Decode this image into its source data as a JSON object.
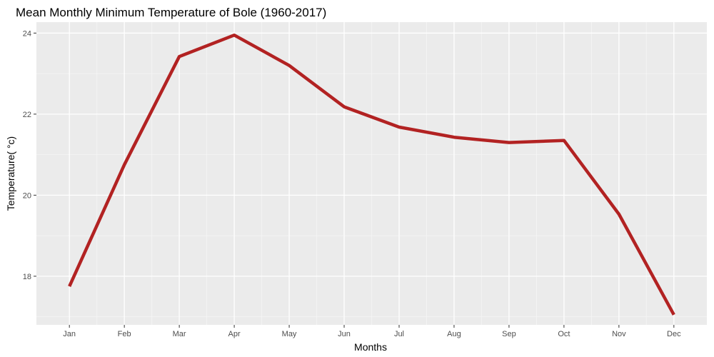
{
  "chart_data": {
    "type": "line",
    "title": "Mean Monthly Minimum Temperature  of Bole (1960-2017)",
    "xlabel": "Months",
    "ylabel": "Temperature( °c)",
    "categories": [
      "Jan",
      "Feb",
      "Mar",
      "Apr",
      "May",
      "Jun",
      "Jul",
      "Aug",
      "Sep",
      "Oct",
      "Nov",
      "Dec"
    ],
    "series": [
      {
        "values": [
          17.75,
          20.75,
          23.42,
          23.95,
          23.2,
          22.18,
          21.68,
          21.43,
          21.3,
          21.35,
          19.53,
          17.05
        ]
      }
    ],
    "yticks": [
      18,
      20,
      22,
      24
    ],
    "ylim": [
      16.8,
      24.27
    ],
    "grid": true,
    "colors": {
      "line": "#b22222",
      "panel": "#ebebeb",
      "grid_major": "#ffffff",
      "grid_minor": "#f5f5f5"
    }
  }
}
